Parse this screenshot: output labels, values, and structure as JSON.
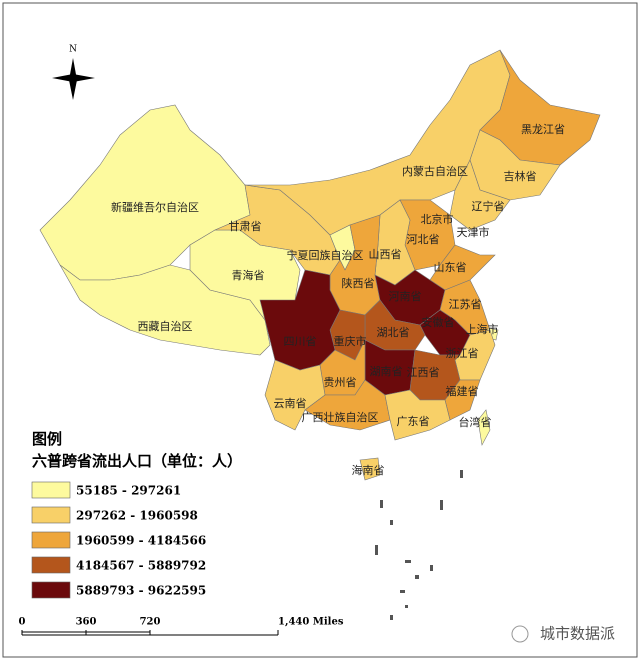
{
  "map": {
    "north": "N",
    "legend": {
      "title": "图例",
      "subtitle": "六普跨省流出人口（单位：人）",
      "items": [
        {
          "label": "55185 - 297261",
          "color": "#fdfa9e"
        },
        {
          "label": "297262 - 1960598",
          "color": "#f8d068"
        },
        {
          "label": "1960599 - 4184566",
          "color": "#eea63b"
        },
        {
          "label": "4184567 - 5889792",
          "color": "#b4561c"
        },
        {
          "label": "5889793 - 9622595",
          "color": "#6b0a0c"
        }
      ]
    },
    "scale": {
      "labels": [
        "0",
        "360",
        "720",
        "1,440 Miles"
      ]
    },
    "watermark": "城市数据派",
    "provinces": [
      {
        "name": "新疆维吾尔自治区",
        "color": "#fdfa9e"
      },
      {
        "name": "西藏自治区",
        "color": "#fdfa9e"
      },
      {
        "name": "青海省",
        "color": "#fdfa9e"
      },
      {
        "name": "甘肃省",
        "color": "#f8d068"
      },
      {
        "name": "内蒙古自治区",
        "color": "#f8d068"
      },
      {
        "name": "黑龙江省",
        "color": "#eea63b"
      },
      {
        "name": "吉林省",
        "color": "#f8d068"
      },
      {
        "name": "辽宁省",
        "color": "#f8d068"
      },
      {
        "name": "北京市",
        "color": "#fdfa9e"
      },
      {
        "name": "天津市",
        "color": "#fdfa9e"
      },
      {
        "name": "河北省",
        "color": "#eea63b"
      },
      {
        "name": "山西省",
        "color": "#f8d068"
      },
      {
        "name": "宁夏回族自治区",
        "color": "#fdfa9e"
      },
      {
        "name": "陕西省",
        "color": "#eea63b"
      },
      {
        "name": "山东省",
        "color": "#eea63b"
      },
      {
        "name": "河南省",
        "color": "#6b0a0c"
      },
      {
        "name": "江苏省",
        "color": "#eea63b"
      },
      {
        "name": "安徽省",
        "color": "#6b0a0c"
      },
      {
        "name": "上海市",
        "color": "#fdfa9e"
      },
      {
        "name": "浙江省",
        "color": "#f8d068"
      },
      {
        "name": "湖北省",
        "color": "#b4561c"
      },
      {
        "name": "重庆市",
        "color": "#b4561c"
      },
      {
        "name": "四川省",
        "color": "#6b0a0c"
      },
      {
        "name": "湖南省",
        "color": "#6b0a0c"
      },
      {
        "name": "江西省",
        "color": "#b4561c"
      },
      {
        "name": "福建省",
        "color": "#eea63b"
      },
      {
        "name": "贵州省",
        "color": "#eea63b"
      },
      {
        "name": "云南省",
        "color": "#f8d068"
      },
      {
        "name": "广西壮族自治区",
        "color": "#eea63b"
      },
      {
        "name": "广东省",
        "color": "#f8d068"
      },
      {
        "name": "海南省",
        "color": "#f8d068"
      },
      {
        "name": "台湾省",
        "color": "#fdfa9e"
      }
    ]
  }
}
